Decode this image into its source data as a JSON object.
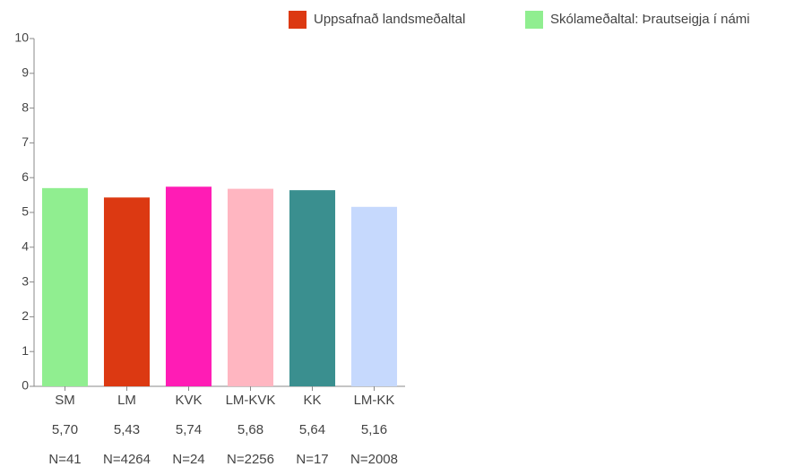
{
  "chart_data": {
    "type": "bar",
    "categories": [
      "SM",
      "LM",
      "KVK",
      "LM-KVK",
      "KK",
      "LM-KK"
    ],
    "values": [
      5.7,
      5.43,
      5.74,
      5.68,
      5.64,
      5.16
    ],
    "value_labels": [
      "5,70",
      "5,43",
      "5,74",
      "5,68",
      "5,64",
      "5,16"
    ],
    "n_labels": [
      "N=41",
      "N=4264",
      "N=24",
      "N=2256",
      "N=17",
      "N=2008"
    ],
    "colors": [
      "#90ee90",
      "#dc3912",
      "#ff1cb5",
      "#ffb6c1",
      "#3a8f8f",
      "#c6d9fd"
    ],
    "legend": [
      {
        "name": "Uppsafnað landsmeðaltal",
        "color": "#dc3912"
      },
      {
        "name": "Skólameðaltal: Þrautseigja í námi",
        "color": "#90ee90"
      }
    ],
    "ylim": [
      0,
      10
    ],
    "yticks": [
      0,
      1,
      2,
      3,
      4,
      5,
      6,
      7,
      8,
      9,
      10
    ]
  }
}
